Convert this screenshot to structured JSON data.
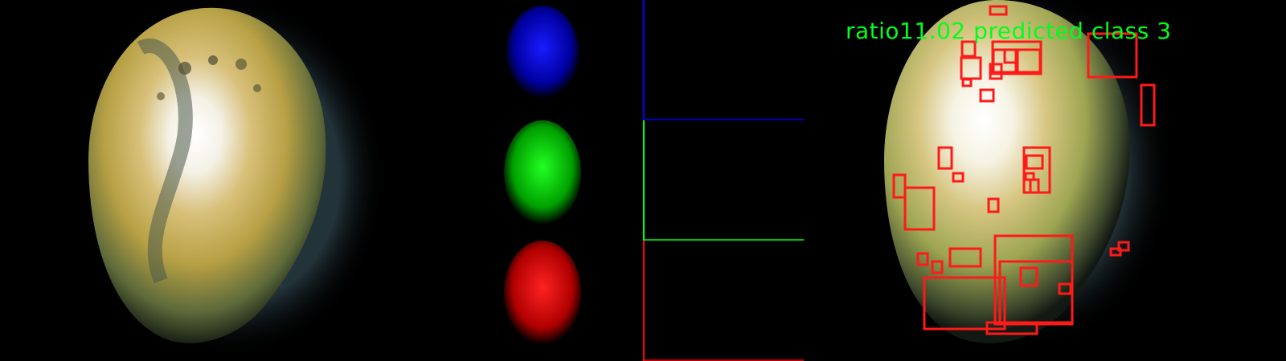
{
  "overlay": {
    "label": "ratio11.02 predicted class 3"
  },
  "colors": {
    "background": "#000000",
    "overlay_text": "#00ff1a",
    "box": "#ff1a1a",
    "hist_blue": "#0000ff",
    "hist_green": "#00ff00",
    "hist_red": "#ff0000"
  },
  "histograms": [
    {
      "channel": "blue"
    },
    {
      "channel": "green"
    },
    {
      "channel": "red"
    }
  ],
  "detections": {
    "count": 32
  }
}
